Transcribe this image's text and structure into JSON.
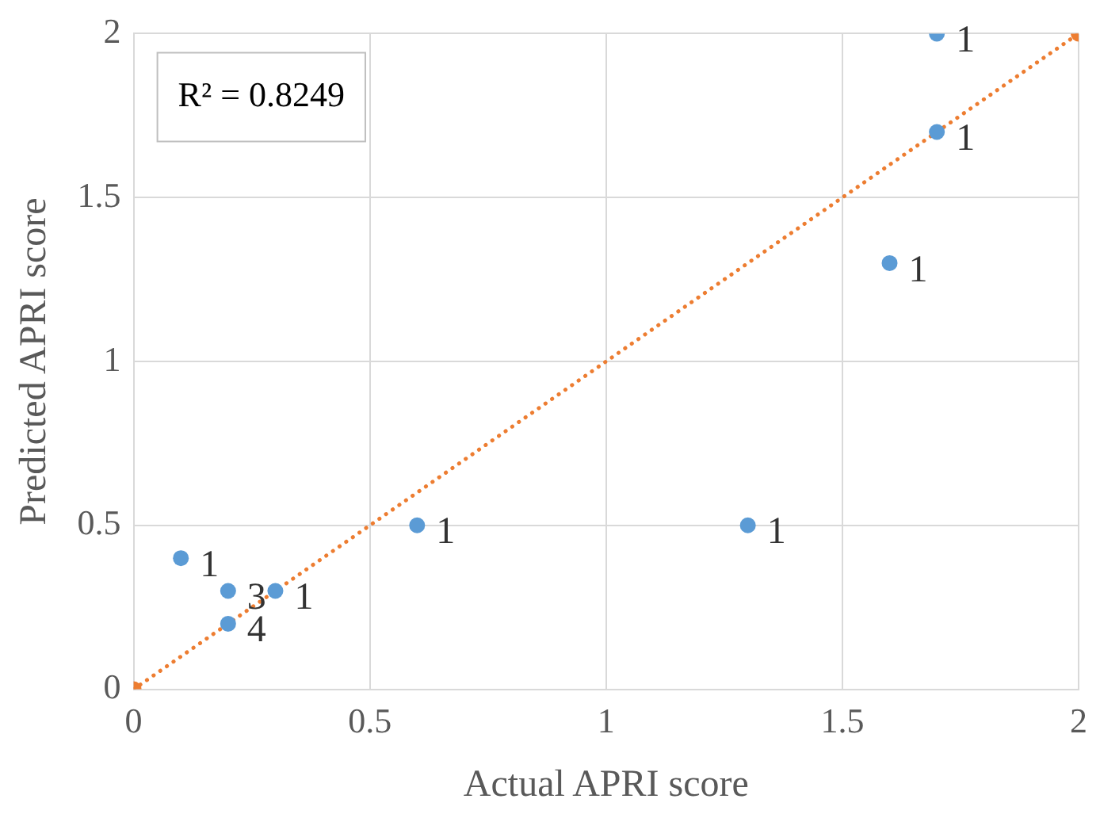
{
  "chart_data": {
    "type": "scatter",
    "xlabel": "Actual APRI score",
    "ylabel": "Predicted APRI score",
    "xlim": [
      0,
      2
    ],
    "xticks": [
      0,
      0.5,
      1,
      1.5,
      2
    ],
    "ylim": [
      0,
      2
    ],
    "yticks": [
      0,
      0.5,
      1,
      1.5,
      2
    ],
    "grid": true,
    "legend": false,
    "annotations": [
      "R² = 0.8249",
      {
        "text": "1",
        "x": 0.1,
        "y": 0.4
      },
      {
        "text": "3",
        "x": 0.2,
        "y": 0.3
      },
      {
        "text": "1",
        "x": 0.3,
        "y": 0.3
      },
      {
        "text": "4",
        "x": 0.2,
        "y": 0.2
      },
      {
        "text": "1",
        "x": 0.6,
        "y": 0.5
      },
      {
        "text": "1",
        "x": 1.3,
        "y": 0.5
      },
      {
        "text": "1",
        "x": 1.6,
        "y": 1.3
      },
      {
        "text": "1",
        "x": 1.7,
        "y": 2
      },
      {
        "text": "1",
        "x": 1.7,
        "y": 1.7
      }
    ],
    "series": [
      {
        "color": "#5b9bd5",
        "marker": "circle",
        "x": [
          0.1,
          0.2,
          0.3,
          0.2,
          0.6,
          1.3,
          1.6,
          1.7,
          1.7
        ],
        "values": [
          0.4,
          0.3,
          0.3,
          0.2,
          0.5,
          0.5,
          1.3,
          2,
          1.7
        ]
      },
      {
        "type": "line",
        "color": "#ed7d31",
        "marker": "circle",
        "line_style": "dotted",
        "x": [
          0,
          2
        ],
        "values": [
          0,
          2
        ]
      }
    ]
  }
}
